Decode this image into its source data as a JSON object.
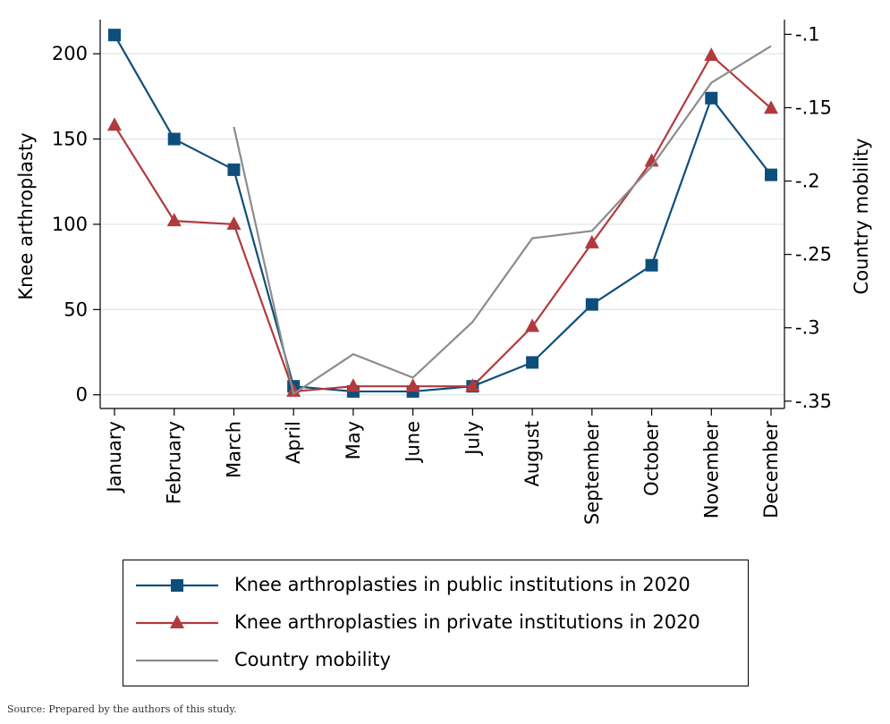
{
  "chart_data": {
    "type": "line",
    "categories": [
      "January",
      "February",
      "March",
      "April",
      "May",
      "June",
      "July",
      "August",
      "September",
      "October",
      "November",
      "December"
    ],
    "ylabel_left": "Knee arthroplasty",
    "ylabel_right": "Country mobility",
    "yticks_left": [
      0,
      50,
      100,
      150,
      200
    ],
    "yticks_left_labels": [
      "0",
      "50",
      "100",
      "150",
      "200"
    ],
    "yticks_right": [
      -0.35,
      -0.3,
      -0.25,
      -0.2,
      -0.15,
      -0.1
    ],
    "yticks_right_labels": [
      "-.35",
      "-.3",
      "-.25",
      "-.2",
      "-.15",
      "-.1"
    ],
    "ylim_left": [
      -8,
      220
    ],
    "ylim_right": [
      -0.355,
      -0.09
    ],
    "grid": true,
    "legend_position": "bottom",
    "series": [
      {
        "name": "Knee arthroplasties in public institutions in 2020",
        "axis": "left",
        "marker": "square",
        "color": "#0d4f7a",
        "values": [
          211,
          150,
          132,
          5,
          2,
          2,
          5,
          19,
          53,
          76,
          174,
          129
        ]
      },
      {
        "name": "Knee arthroplasties in private institutions in 2020",
        "axis": "left",
        "marker": "triangle",
        "color": "#b23a3e",
        "values": [
          158,
          102,
          100,
          2,
          5,
          5,
          5,
          40,
          89,
          137,
          199,
          168
        ]
      },
      {
        "name": "Country mobility",
        "axis": "right",
        "marker": "none",
        "color": "#8c8c8c",
        "values": [
          null,
          null,
          -0.163,
          -0.345,
          -0.318,
          -0.334,
          -0.296,
          -0.239,
          -0.234,
          -0.19,
          -0.133,
          -0.108
        ]
      }
    ]
  },
  "source_note": "Source: Prepared by the authors of this study."
}
